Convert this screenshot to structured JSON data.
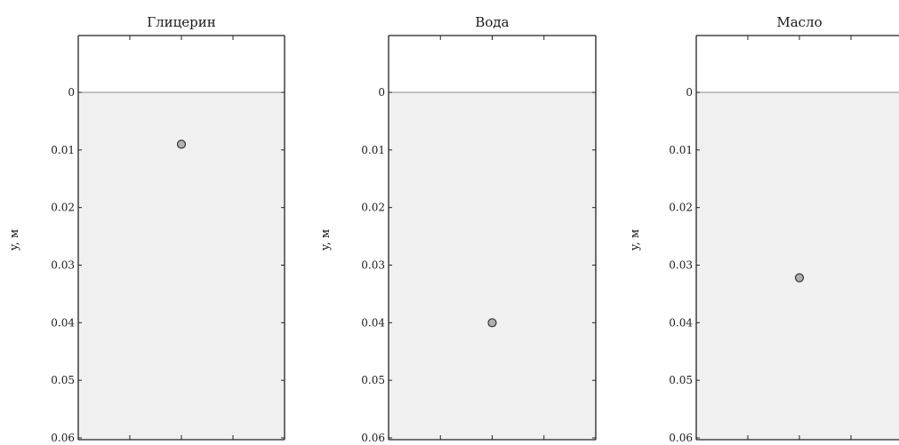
{
  "chart_data": [
    {
      "type": "scatter",
      "title": "Глицерин",
      "ylabel": "y, м",
      "xlabel": "",
      "ylim": [
        0,
        0.06
      ],
      "y_inverted": true,
      "yticks": [
        "0",
        "0.01",
        "0.02",
        "0.03",
        "0.04",
        "0.05",
        "0.06"
      ],
      "liquid_surface_y": 0,
      "points": [
        {
          "x": 0.5,
          "y": 0.009
        }
      ],
      "colors": {
        "fill": "#f0f0f0",
        "point": "#b0b0b0"
      }
    },
    {
      "type": "scatter",
      "title": "Вода",
      "ylabel": "y, м",
      "xlabel": "",
      "ylim": [
        0,
        0.06
      ],
      "y_inverted": true,
      "yticks": [
        "0",
        "0.01",
        "0.02",
        "0.03",
        "0.04",
        "0.05",
        "0.06"
      ],
      "liquid_surface_y": 0,
      "points": [
        {
          "x": 0.5,
          "y": 0.04
        }
      ],
      "colors": {
        "fill": "#f0f0f0",
        "point": "#b0b0b0"
      }
    },
    {
      "type": "scatter",
      "title": "Масло",
      "ylabel": "y, м",
      "xlabel": "",
      "ylim": [
        0,
        0.06
      ],
      "y_inverted": true,
      "yticks": [
        "0",
        "0.01",
        "0.02",
        "0.03",
        "0.04",
        "0.05",
        "0.06"
      ],
      "liquid_surface_y": 0,
      "points": [
        {
          "x": 0.5,
          "y": 0.0322
        }
      ],
      "colors": {
        "fill": "#f0f0f0",
        "point": "#b0b0b0"
      }
    }
  ]
}
